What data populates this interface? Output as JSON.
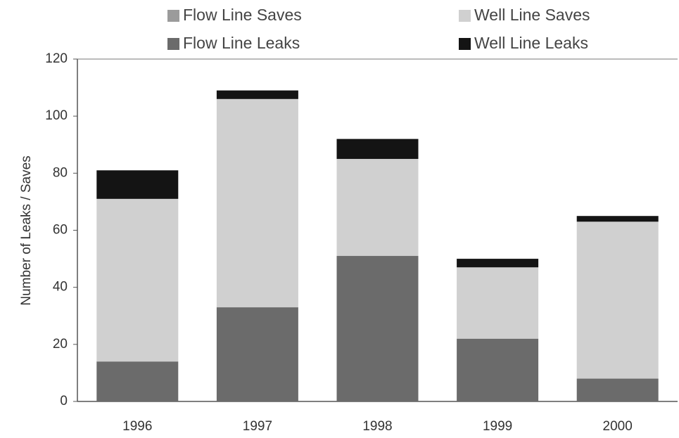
{
  "chart_data": {
    "type": "stacked_bar",
    "y_label": "Number of Leaks / Saves",
    "categories": [
      "1996",
      "1997",
      "1998",
      "1999",
      "2000"
    ],
    "series": [
      {
        "name": "Flow Line Saves",
        "color": "#9b9b9b",
        "values": [
          0,
          0,
          0,
          0,
          0
        ]
      },
      {
        "name": "Well Line Saves",
        "color": "#d0d0d0",
        "values": [
          57,
          73,
          34,
          25,
          55
        ]
      },
      {
        "name": "Flow Line Leaks",
        "color": "#6b6b6b",
        "values": [
          14,
          33,
          51,
          22,
          8
        ]
      },
      {
        "name": "Well Line Leaks",
        "color": "#141414",
        "values": [
          10,
          3,
          7,
          3,
          2
        ]
      }
    ],
    "ylim": [
      0,
      120
    ],
    "yticks": [
      0,
      20,
      40,
      60,
      80,
      100,
      120
    ],
    "grid": false
  }
}
